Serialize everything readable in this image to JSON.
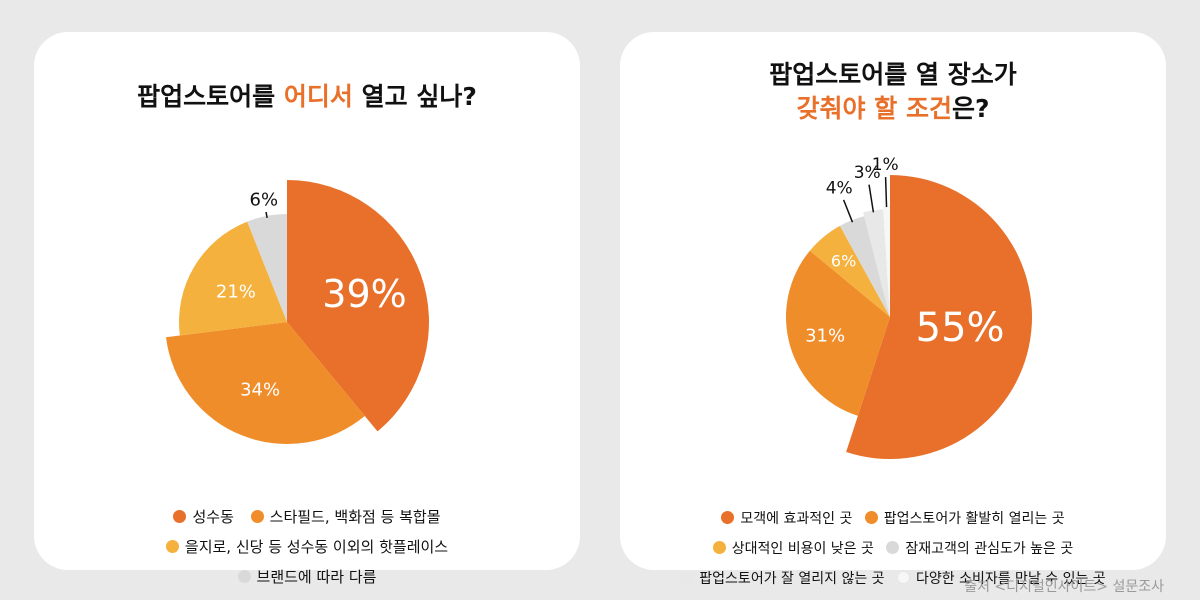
{
  "chart_data": [
    {
      "type": "pie",
      "title_parts": [
        "팝업스토어를 ",
        "어디서",
        " 열고 싶나?"
      ],
      "slices": [
        {
          "label": "성수동",
          "value": 39,
          "display": "39%",
          "color": "#e8702a"
        },
        {
          "label": "스타필드, 백화점 등 복합몰",
          "value": 34,
          "display": "34%",
          "color": "#f08d2b"
        },
        {
          "label": "을지로, 신당 등 성수동 이외의 핫플레이스",
          "value": 21,
          "display": "21%",
          "color": "#f5b13d"
        },
        {
          "label": "브랜드에 따라 다름",
          "value": 6,
          "display": "6%",
          "color": "#d9d9d9"
        }
      ]
    },
    {
      "type": "pie",
      "title_parts": [
        "팝업스토어를 열 장소가",
        "갖춰야 할 조건",
        "은?"
      ],
      "slices": [
        {
          "label": "모객에 효과적인 곳",
          "value": 55,
          "display": "55%",
          "color": "#e8702a"
        },
        {
          "label": "팝업스토어가 활발히 열리는 곳",
          "value": 31,
          "display": "31%",
          "color": "#f08d2b"
        },
        {
          "label": "상대적인 비용이 낮은 곳",
          "value": 6,
          "display": "6%",
          "color": "#f5b13d"
        },
        {
          "label": "잠재고객의 관심도가 높은 곳",
          "value": 4,
          "display": "4%",
          "color": "#d9d9d9"
        },
        {
          "label": "팝업스토어가 잘 열리지 않는 곳",
          "value": 3,
          "display": "3%",
          "color": "#e8e8e8"
        },
        {
          "label": "다양한 소비자를 만날 수 있는 곳",
          "value": 1,
          "display": "1%",
          "color": "#f7f7f7"
        }
      ]
    }
  ],
  "source": "출처 <디지털인사이트> 설문조사"
}
